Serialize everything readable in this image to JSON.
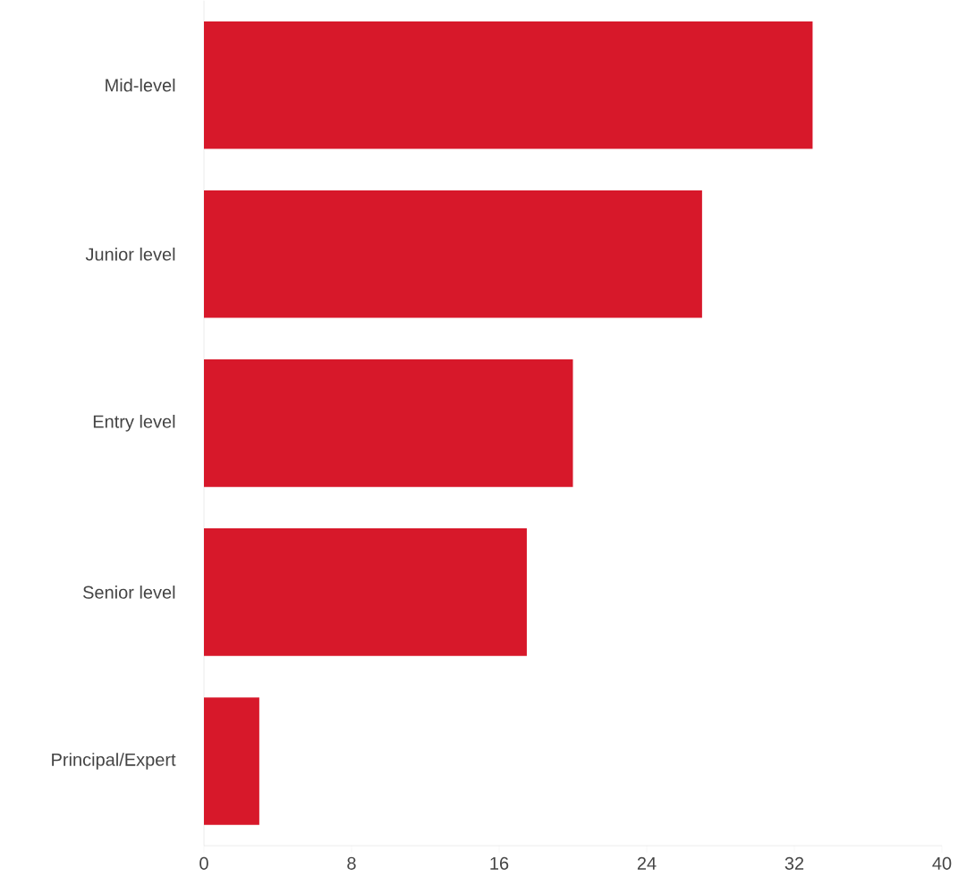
{
  "chart_data": {
    "type": "bar",
    "orientation": "horizontal",
    "categories": [
      "Mid-level",
      "Junior level",
      "Entry level",
      "Senior level",
      "Principal/Expert"
    ],
    "values": [
      33,
      27,
      20,
      17.5,
      3
    ],
    "color": "#d7182a",
    "xlim": [
      0,
      40
    ],
    "xticks": [
      0,
      8,
      16,
      24,
      32,
      40
    ],
    "grid": false
  }
}
